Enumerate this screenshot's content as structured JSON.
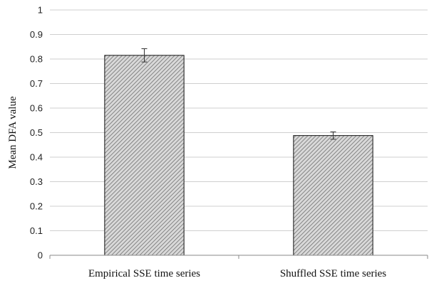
{
  "chart_data": {
    "type": "bar",
    "title": "",
    "xlabel": "",
    "ylabel": "Mean DFA value",
    "categories": [
      "Empirical SSE time series",
      "Shuffled SSE time series"
    ],
    "values": [
      0.815,
      0.488
    ],
    "errors": [
      0.027,
      0.015
    ],
    "ylim": [
      0,
      1
    ],
    "yticks": [
      "0",
      "0.1",
      "0.2",
      "0.3",
      "0.4",
      "0.5",
      "0.6",
      "0.7",
      "0.8",
      "0.9",
      "1"
    ],
    "grid": true,
    "legend": "none",
    "bar_fill": "hatched gray",
    "colors": {
      "bar_stroke": "#111111",
      "grid": "#cfcfcf",
      "axis": "#8a8a8a"
    }
  }
}
